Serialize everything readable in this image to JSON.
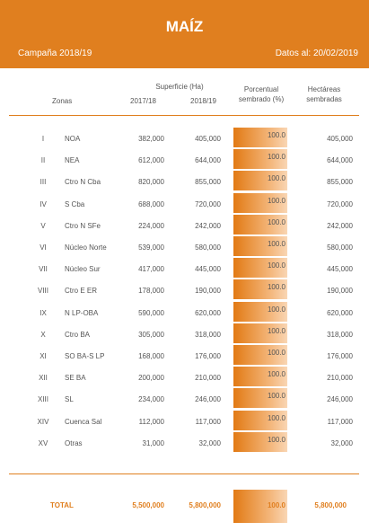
{
  "header": {
    "title": "MAÍZ",
    "campaign": "Campaña 2018/19",
    "date": "Datos al: 20/02/2019"
  },
  "table": {
    "group_header": "Superficie (Ha)",
    "columns": [
      "Zonas",
      "2017/18",
      "2018/19",
      "Porcentual sembrado (%)",
      "Hectáreas sembradas"
    ],
    "rows": [
      [
        "I",
        "NOA",
        "382,000",
        "405,000",
        "100.0",
        "405,000"
      ],
      [
        "II",
        "NEA",
        "612,000",
        "644,000",
        "100.0",
        "644,000"
      ],
      [
        "III",
        "Ctro N Cba",
        "820,000",
        "855,000",
        "100.0",
        "855,000"
      ],
      [
        "IV",
        "S Cba",
        "688,000",
        "720,000",
        "100.0",
        "720,000"
      ],
      [
        "V",
        "Ctro N SFe",
        "224,000",
        "242,000",
        "100.0",
        "242,000"
      ],
      [
        "VI",
        "Núcleo Norte",
        "539,000",
        "580,000",
        "100.0",
        "580,000"
      ],
      [
        "VII",
        "Núcleo Sur",
        "417,000",
        "445,000",
        "100.0",
        "445,000"
      ],
      [
        "VIII",
        "Ctro E ER",
        "178,000",
        "190,000",
        "100.0",
        "190,000"
      ],
      [
        "IX",
        "N LP-OBA",
        "590,000",
        "620,000",
        "100.0",
        "620,000"
      ],
      [
        "X",
        "Ctro BA",
        "305,000",
        "318,000",
        "100.0",
        "318,000"
      ],
      [
        "XI",
        "SO BA-S LP",
        "168,000",
        "176,000",
        "100.0",
        "176,000"
      ],
      [
        "XII",
        "SE BA",
        "200,000",
        "210,000",
        "100.0",
        "210,000"
      ],
      [
        "XIII",
        "SL",
        "234,000",
        "246,000",
        "100.0",
        "246,000"
      ],
      [
        "XIV",
        "Cuenca Sal",
        "112,000",
        "117,000",
        "100.0",
        "117,000"
      ],
      [
        "XV",
        "Otras",
        "31,000",
        "32,000",
        "100.0",
        "32,000"
      ]
    ],
    "total": [
      "TOTAL",
      "5,500,000",
      "5,800,000",
      "100.0",
      "5,800,000"
    ]
  }
}
